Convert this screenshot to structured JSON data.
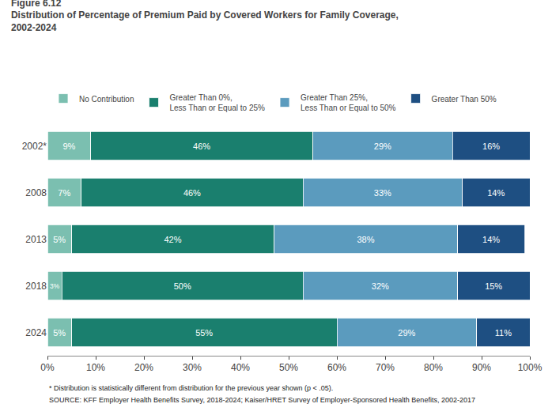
{
  "chart_data": {
    "type": "bar",
    "orientation": "horizontal",
    "stacked": true,
    "title": "Figure 6.12",
    "subtitle": "Distribution of Percentage of Premium Paid by Covered Workers for Family Coverage,\n2002-2024",
    "categories": [
      "2002*",
      "2008",
      "2013",
      "2018",
      "2024"
    ],
    "series": [
      {
        "name": "No Contribution",
        "color": "#7bbfb0",
        "values": [
          9,
          7,
          5,
          3,
          5
        ],
        "value_labels": [
          "9%",
          "7%",
          "5%",
          "3%",
          "5%"
        ]
      },
      {
        "name": "Greater Than 0%,\nLess Than or Equal to 25%",
        "color": "#1a7f6e",
        "values": [
          46,
          46,
          42,
          50,
          55
        ],
        "value_labels": [
          "46%",
          "46%",
          "42%",
          "50%",
          "55%"
        ]
      },
      {
        "name": "Greater Than 25%,\nLess Than or Equal to 50%",
        "color": "#5b9bbe",
        "values": [
          29,
          33,
          38,
          32,
          29
        ],
        "value_labels": [
          "29%",
          "33%",
          "38%",
          "32%",
          "29%"
        ]
      },
      {
        "name": "Greater Than 50%",
        "color": "#1e4f82",
        "values": [
          16,
          14,
          14,
          15,
          11
        ],
        "value_labels": [
          "16%",
          "14%",
          "14%",
          "15%",
          "11%"
        ]
      }
    ],
    "xlim": [
      0,
      100
    ],
    "xticks": [
      {
        "value": 0,
        "label": "0%"
      },
      {
        "value": 10,
        "label": "10%"
      },
      {
        "value": 20,
        "label": "20%"
      },
      {
        "value": 30,
        "label": "30%"
      },
      {
        "value": 40,
        "label": "40%"
      },
      {
        "value": 50,
        "label": "50%"
      },
      {
        "value": 60,
        "label": "60%"
      },
      {
        "value": 70,
        "label": "70%"
      },
      {
        "value": 80,
        "label": "80%"
      },
      {
        "value": 90,
        "label": "90%"
      },
      {
        "value": 100,
        "label": "100%"
      }
    ],
    "grid": false,
    "legend": "top",
    "data_labels": true,
    "annotations": [
      "* Distribution is statistically different from distribution for the previous year shown (p < .05).",
      "SOURCE: KFF Employer Health Benefits Survey, 2018-2024; Kaiser/HRET Survey of Employer-Sponsored Health Benefits, 2002-2017"
    ]
  }
}
